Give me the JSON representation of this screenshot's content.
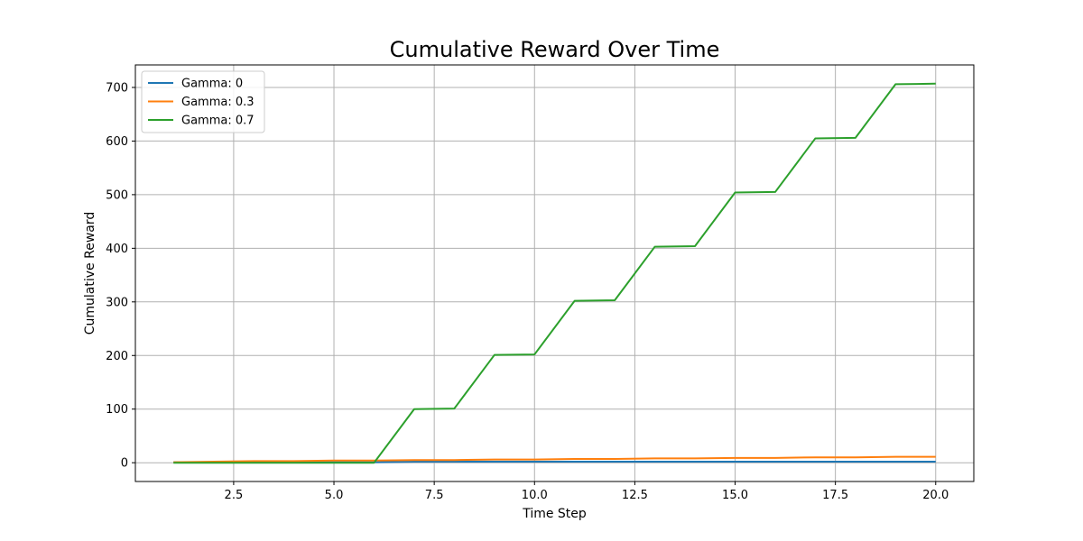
{
  "chart_data": {
    "type": "line",
    "title": "Cumulative Reward Over Time",
    "xlabel": "Time Step",
    "ylabel": "Cumulative Reward",
    "xlim": [
      0.05,
      20.95
    ],
    "ylim": [
      -35,
      742
    ],
    "xticks": [
      2.5,
      5.0,
      7.5,
      10.0,
      12.5,
      15.0,
      17.5,
      20.0
    ],
    "xtick_labels": [
      "2.5",
      "5.0",
      "7.5",
      "10.0",
      "12.5",
      "15.0",
      "17.5",
      "20.0"
    ],
    "yticks": [
      0,
      100,
      200,
      300,
      400,
      500,
      600,
      700
    ],
    "ytick_labels": [
      "0",
      "100",
      "200",
      "300",
      "400",
      "500",
      "600",
      "700"
    ],
    "grid": true,
    "legend_position": "top-left",
    "x": [
      1,
      2,
      3,
      4,
      5,
      6,
      7,
      8,
      9,
      10,
      11,
      12,
      13,
      14,
      15,
      16,
      17,
      18,
      19,
      20
    ],
    "series": [
      {
        "name": "Gamma: 0",
        "color": "#1f77b4",
        "values": [
          1,
          1,
          1,
          1,
          1,
          1,
          2,
          2,
          2,
          2,
          2,
          2,
          2,
          2,
          2,
          2,
          2,
          2,
          2,
          2
        ]
      },
      {
        "name": "Gamma: 0.3",
        "color": "#ff7f0e",
        "values": [
          1,
          2,
          3,
          3,
          4,
          4,
          5,
          5,
          6,
          6,
          7,
          7,
          8,
          8,
          9,
          9,
          10,
          10,
          11,
          11
        ]
      },
      {
        "name": "Gamma: 0.7",
        "color": "#2ca02c",
        "values": [
          0,
          0,
          0,
          0,
          0,
          0,
          100,
          101,
          201,
          202,
          302,
          303,
          403,
          404,
          504,
          505,
          605,
          606,
          706,
          707
        ]
      }
    ]
  }
}
